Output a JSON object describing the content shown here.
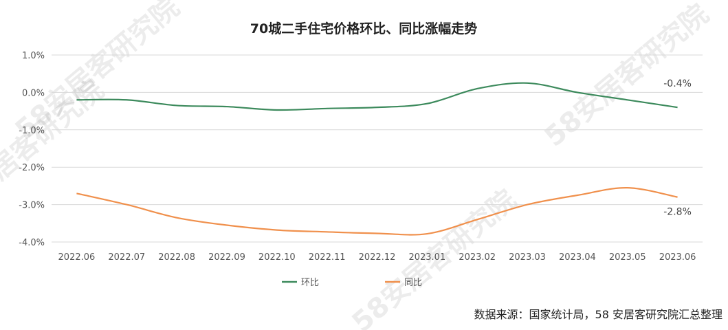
{
  "chart_data": {
    "type": "line",
    "title": "70城二手住宅价格环比、同比涨幅走势",
    "categories": [
      "2022.06",
      "2022.07",
      "2022.08",
      "2022.09",
      "2022.10",
      "2022.11",
      "2022.12",
      "2023.01",
      "2023.02",
      "2023.03",
      "2023.04",
      "2023.05",
      "2023.06"
    ],
    "series": [
      {
        "name": "环比",
        "color": "#3c8a5c",
        "values": [
          -0.2,
          -0.2,
          -0.35,
          -0.38,
          -0.47,
          -0.43,
          -0.4,
          -0.3,
          0.1,
          0.25,
          0.0,
          -0.2,
          -0.4
        ]
      },
      {
        "name": "同比",
        "color": "#f0904c",
        "values": [
          -2.7,
          -3.0,
          -3.35,
          -3.55,
          -3.68,
          -3.73,
          -3.77,
          -3.78,
          -3.4,
          -3.0,
          -2.75,
          -2.55,
          -2.8
        ]
      }
    ],
    "ylim": [
      -4.0,
      1.0
    ],
    "yticks": [
      "1.0%",
      "0.0%",
      "-1.0%",
      "-2.0%",
      "-3.0%",
      "-4.0%"
    ],
    "grid": true,
    "legend": "bottom-center",
    "data_labels": [
      {
        "series": 0,
        "index": 12,
        "text": "-0.4%"
      },
      {
        "series": 1,
        "index": 12,
        "text": "-2.8%"
      }
    ]
  },
  "source": "数据来源：国家统计局，58 安居客研究院汇总整理",
  "watermark": "58安居客研究院"
}
